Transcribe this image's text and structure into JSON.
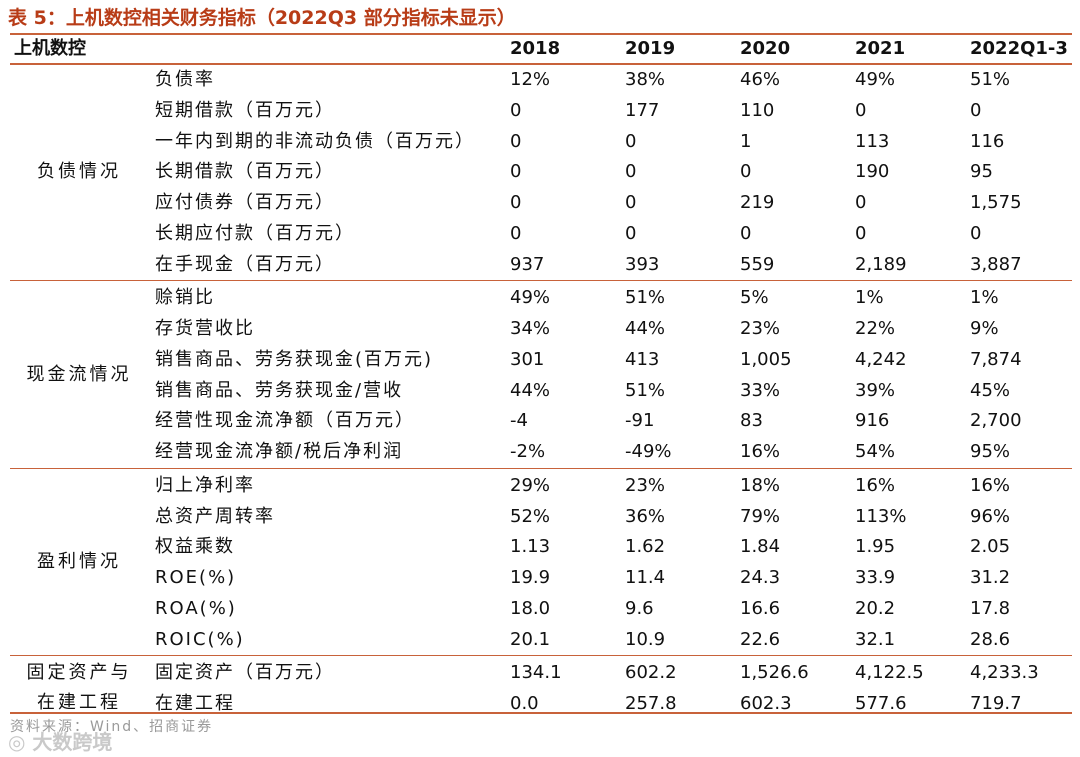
{
  "title": "表 5：上机数控相关财务指标（2022Q3 部分指标未显示）",
  "header": {
    "company": "上机数控",
    "years": [
      "2018",
      "2019",
      "2020",
      "2021",
      "2022Q1-3"
    ]
  },
  "groups": [
    {
      "name": "负债情况",
      "rows": [
        {
          "metric": "负债率",
          "values": [
            "12%",
            "38%",
            "46%",
            "49%",
            "51%"
          ]
        },
        {
          "metric": "短期借款（百万元）",
          "values": [
            "0",
            "177",
            "110",
            "0",
            "0"
          ]
        },
        {
          "metric": "一年内到期的非流动负债（百万元）",
          "values": [
            "0",
            "0",
            "1",
            "113",
            "116"
          ]
        },
        {
          "metric": "长期借款（百万元）",
          "values": [
            "0",
            "0",
            "0",
            "190",
            "95"
          ]
        },
        {
          "metric": "应付债券（百万元）",
          "values": [
            "0",
            "0",
            "219",
            "0",
            "1,575"
          ]
        },
        {
          "metric": "长期应付款（百万元）",
          "values": [
            "0",
            "0",
            "0",
            "0",
            "0"
          ]
        },
        {
          "metric": "在手现金（百万元）",
          "values": [
            "937",
            "393",
            "559",
            "2,189",
            "3,887"
          ]
        }
      ]
    },
    {
      "name": "现金流情况",
      "rows": [
        {
          "metric": "赊销比",
          "values": [
            "49%",
            "51%",
            "5%",
            "1%",
            "1%"
          ]
        },
        {
          "metric": "存货营收比",
          "values": [
            "34%",
            "44%",
            "23%",
            "22%",
            "9%"
          ]
        },
        {
          "metric": "销售商品、劳务获现金(百万元)",
          "values": [
            "301",
            "413",
            "1,005",
            "4,242",
            "7,874"
          ]
        },
        {
          "metric": "销售商品、劳务获现金/营收",
          "values": [
            "44%",
            "51%",
            "33%",
            "39%",
            "45%"
          ]
        },
        {
          "metric": "经营性现金流净额（百万元）",
          "values": [
            "-4",
            "-91",
            "83",
            "916",
            "2,700"
          ]
        },
        {
          "metric": "经营现金流净额/税后净利润",
          "values": [
            "-2%",
            "-49%",
            "16%",
            "54%",
            "95%"
          ]
        }
      ]
    },
    {
      "name": "盈利情况",
      "rows": [
        {
          "metric": "归上净利率",
          "values": [
            "29%",
            "23%",
            "18%",
            "16%",
            "16%"
          ]
        },
        {
          "metric": "总资产周转率",
          "values": [
            "52%",
            "36%",
            "79%",
            "113%",
            "96%"
          ]
        },
        {
          "metric": "权益乘数",
          "values": [
            "1.13",
            "1.62",
            "1.84",
            "1.95",
            "2.05"
          ]
        },
        {
          "metric": "ROE(%)",
          "values": [
            "19.9",
            "11.4",
            "24.3",
            "33.9",
            "31.2"
          ]
        },
        {
          "metric": "ROA(%)",
          "values": [
            "18.0",
            "9.6",
            "16.6",
            "20.2",
            "17.8"
          ]
        },
        {
          "metric": "ROIC(%)",
          "values": [
            "20.1",
            "10.9",
            "22.6",
            "32.1",
            "28.6"
          ]
        }
      ]
    },
    {
      "name": "固定资产与在建工程",
      "name_lines": [
        "固定资产与",
        "在建工程"
      ],
      "rows": [
        {
          "metric": "固定资产（百万元）",
          "values": [
            "134.1",
            "602.2",
            "1,526.6",
            "4,122.5",
            "4,233.3"
          ]
        },
        {
          "metric": "在建工程",
          "values": [
            "0.0",
            "257.8",
            "602.3",
            "577.6",
            "719.7"
          ]
        }
      ]
    }
  ],
  "source": "资料来源：Wind、招商证券",
  "watermark": "大数跨境"
}
